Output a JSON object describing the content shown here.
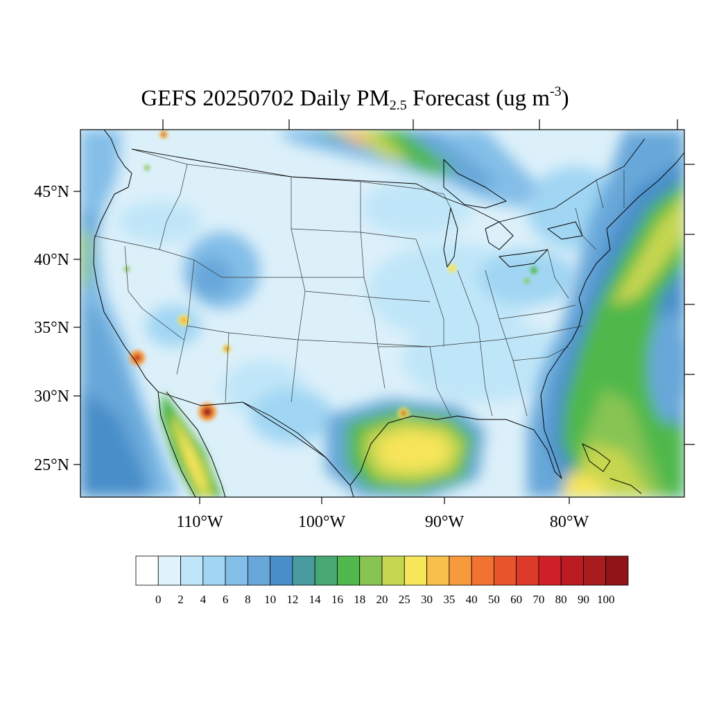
{
  "title": {
    "prefix": "GEFS 20250702 Daily PM",
    "subscript": "2.5",
    "middle": " Forecast (ug m",
    "superscript": "-3",
    "suffix": ")"
  },
  "map": {
    "projection": "lambert-conformal",
    "lon_range": [
      -125,
      -66
    ],
    "lat_range": [
      23,
      50
    ],
    "lat_labels": [
      "45°N",
      "40°N",
      "35°N",
      "30°N",
      "25°N"
    ],
    "lon_labels": [
      "110°W",
      "100°W",
      "90°W",
      "80°W"
    ],
    "background_color": "#dcf0fa",
    "boundaries": [
      "coastlines",
      "state-lines",
      "country-borders",
      "great-lakes"
    ]
  },
  "colorbar": {
    "labels": [
      "0",
      "2",
      "4",
      "6",
      "8",
      "10",
      "12",
      "14",
      "16",
      "18",
      "20",
      "25",
      "30",
      "35",
      "40",
      "50",
      "60",
      "70",
      "80",
      "90",
      "100"
    ],
    "colors": [
      "#ffffff",
      "#e0f3fb",
      "#bfe6f8",
      "#a0d6f3",
      "#83bee8",
      "#67a7d9",
      "#4a8ec9",
      "#489b9f",
      "#47a874",
      "#50b84c",
      "#87c452",
      "#c6d650",
      "#f7e55a",
      "#f8bf4a",
      "#f79a3e",
      "#f27331",
      "#e8542b",
      "#de3a29",
      "#d02028",
      "#bc1b22",
      "#a81c1f",
      "#8f1519"
    ]
  }
}
